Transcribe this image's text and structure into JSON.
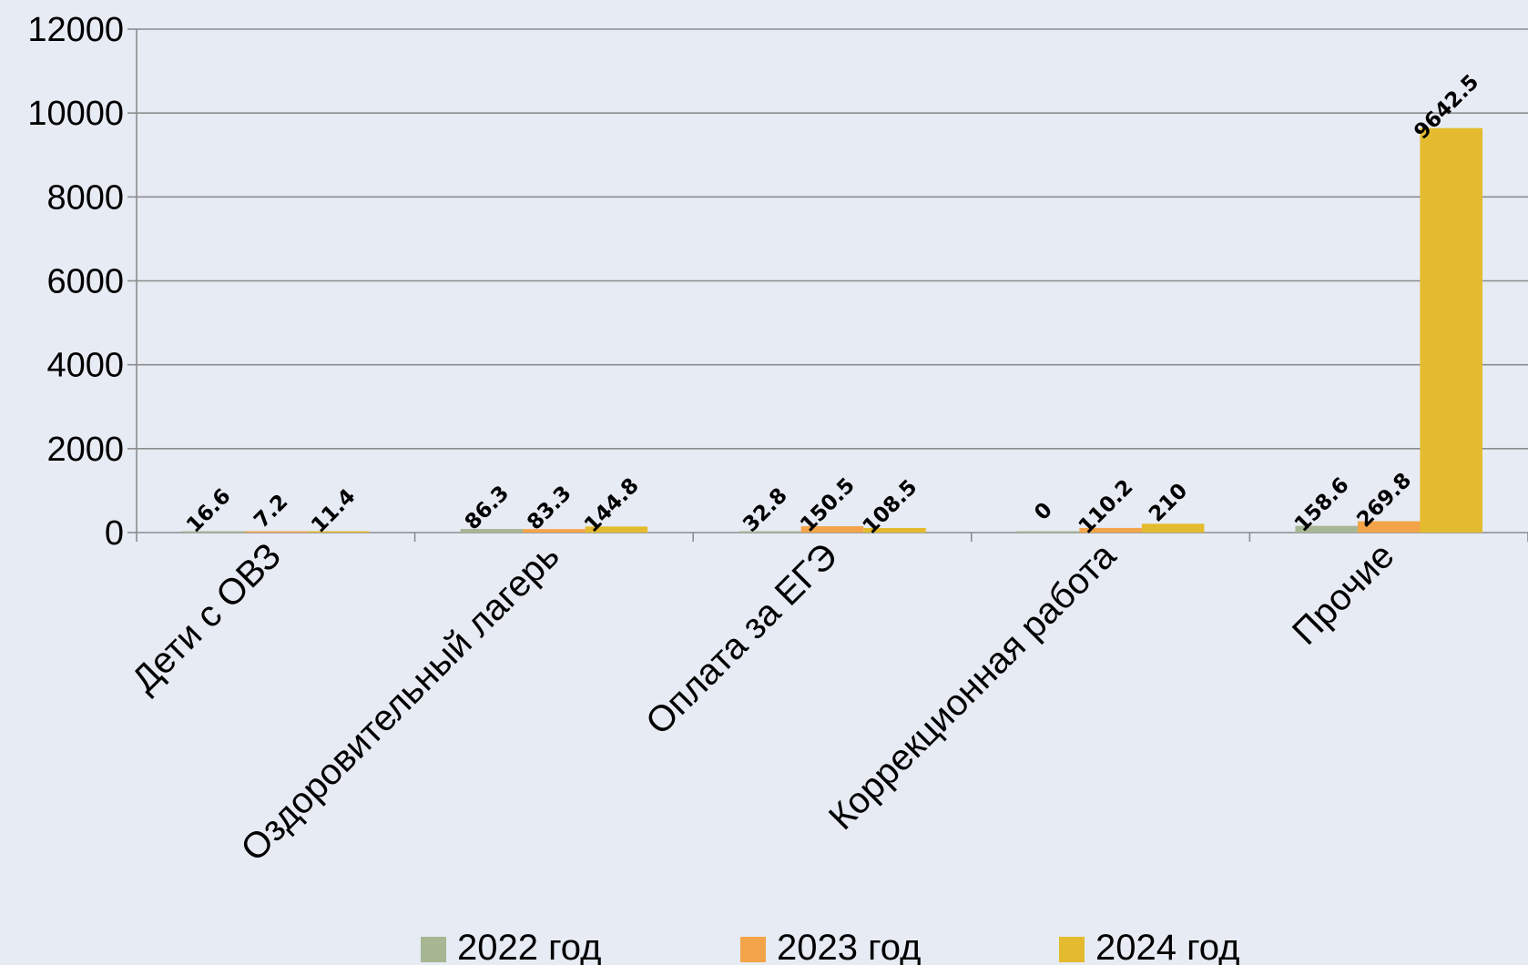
{
  "chart_data": {
    "type": "bar",
    "categories": [
      "Дети с ОВЗ",
      "Оздоровительный лагерь",
      "Оплата за ЕГЭ",
      "Коррекционная работа",
      "Прочие"
    ],
    "series": [
      {
        "name": "2022 год",
        "color": "#a7b693",
        "values": [
          16.6,
          86.3,
          32.8,
          0,
          158.6
        ],
        "labels": [
          "16.6",
          "86.3",
          "32.8",
          "0",
          "158.6"
        ]
      },
      {
        "name": "2023 год",
        "color": "#f3a449",
        "values": [
          7.2,
          83.3,
          150.5,
          110.2,
          269.8
        ],
        "labels": [
          "7.2",
          "83.3",
          "150.5",
          "110.2",
          "269.8"
        ]
      },
      {
        "name": "2024 год",
        "color": "#e4bb2e",
        "values": [
          11.4,
          144.8,
          108.5,
          210,
          9642.5
        ],
        "labels": [
          "11.4",
          "144.8",
          "108.5",
          "210",
          "9642.5"
        ]
      }
    ],
    "y_ticks": [
      "0",
      "2000",
      "4000",
      "6000",
      "8000",
      "10000",
      "12000"
    ],
    "ylim": [
      0,
      12000
    ],
    "grid": true,
    "legend_position": "bottom",
    "xlabel": "",
    "ylabel": ""
  }
}
